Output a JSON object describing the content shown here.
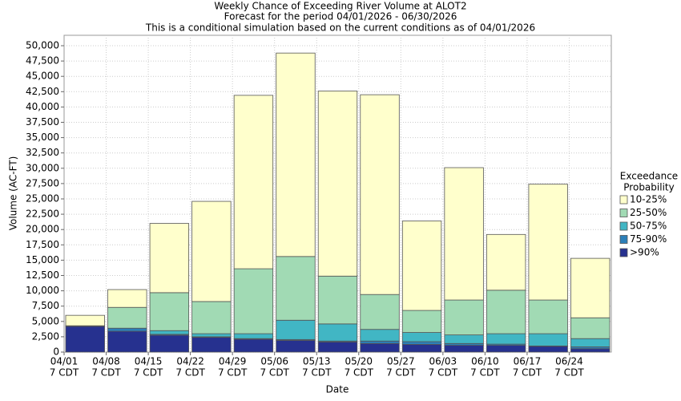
{
  "chart_data": {
    "type": "stacked-bar",
    "title": "Weekly Chance of Exceeding River Volume at ALOT2",
    "subtitle": "Forecast for the period 04/01/2026 - 06/30/2026",
    "note": "This is a conditional simulation based on the current conditions as of 04/01/2026",
    "x_label": "Date",
    "y_label": "Volume (AC-FT)",
    "legend_title": [
      "Exceedance",
      "Probability"
    ],
    "categories": [
      [
        "04/01",
        "7 CDT"
      ],
      [
        "04/08",
        "7 CDT"
      ],
      [
        "04/15",
        "7 CDT"
      ],
      [
        "04/22",
        "7 CDT"
      ],
      [
        "04/29",
        "7 CDT"
      ],
      [
        "05/06",
        "7 CDT"
      ],
      [
        "05/13",
        "7 CDT"
      ],
      [
        "05/20",
        "7 CDT"
      ],
      [
        "05/27",
        "7 CDT"
      ],
      [
        "06/03",
        "7 CDT"
      ],
      [
        "06/10",
        "7 CDT"
      ],
      [
        "06/17",
        "7 CDT"
      ],
      [
        "06/24",
        "7 CDT"
      ]
    ],
    "series": [
      {
        "name": ">90%",
        "color": "#26318f",
        "values": [
          4200,
          3400,
          2750,
          2400,
          2100,
          1900,
          1650,
          1400,
          1250,
          1100,
          1100,
          950,
          550
        ]
      },
      {
        "name": "75-90%",
        "color": "#2c7fb8",
        "values": [
          100,
          500,
          150,
          100,
          100,
          150,
          150,
          400,
          450,
          300,
          200,
          50,
          300
        ]
      },
      {
        "name": "50-75%",
        "color": "#41b6c4",
        "values": [
          0,
          0,
          600,
          500,
          800,
          3150,
          2800,
          1900,
          1500,
          1400,
          1700,
          2000,
          1350
        ]
      },
      {
        "name": "25-50%",
        "color": "#a1dab4",
        "values": [
          0,
          3400,
          6200,
          5250,
          10600,
          10400,
          7800,
          5700,
          3600,
          5700,
          7100,
          5500,
          3400
        ]
      },
      {
        "name": "10-25%",
        "color": "#ffffcc",
        "values": [
          1700,
          2900,
          11300,
          16350,
          28300,
          33200,
          30200,
          32600,
          14600,
          21600,
          9100,
          18900,
          9700
        ]
      }
    ],
    "ylim": [
      0,
      51700
    ],
    "yticks": [
      0,
      {
        "value": 2500,
        "label": "2,500"
      },
      {
        "value": 5000,
        "label": "5,000"
      },
      {
        "value": 7500,
        "label": "7,500"
      },
      {
        "value": 10000,
        "label": "10,000"
      },
      {
        "value": 12500,
        "label": "12,500"
      },
      {
        "value": 15000,
        "label": "15,000"
      },
      {
        "value": 17500,
        "label": "17,500"
      },
      {
        "value": 20000,
        "label": "20,000"
      },
      {
        "value": 22500,
        "label": "22,500"
      },
      {
        "value": 25000,
        "label": "25,000"
      },
      {
        "value": 27500,
        "label": "27,500"
      },
      {
        "value": 30000,
        "label": "30,000"
      },
      {
        "value": 32500,
        "label": "32,500"
      },
      {
        "value": 35000,
        "label": "35,000"
      },
      {
        "value": 37500,
        "label": "37,500"
      },
      {
        "value": 40000,
        "label": "40,000"
      },
      {
        "value": 42500,
        "label": "42,500"
      },
      {
        "value": 45000,
        "label": "45,000"
      },
      {
        "value": 47500,
        "label": "47,500"
      },
      {
        "value": 50000,
        "label": "50,000"
      }
    ],
    "grid": true
  }
}
